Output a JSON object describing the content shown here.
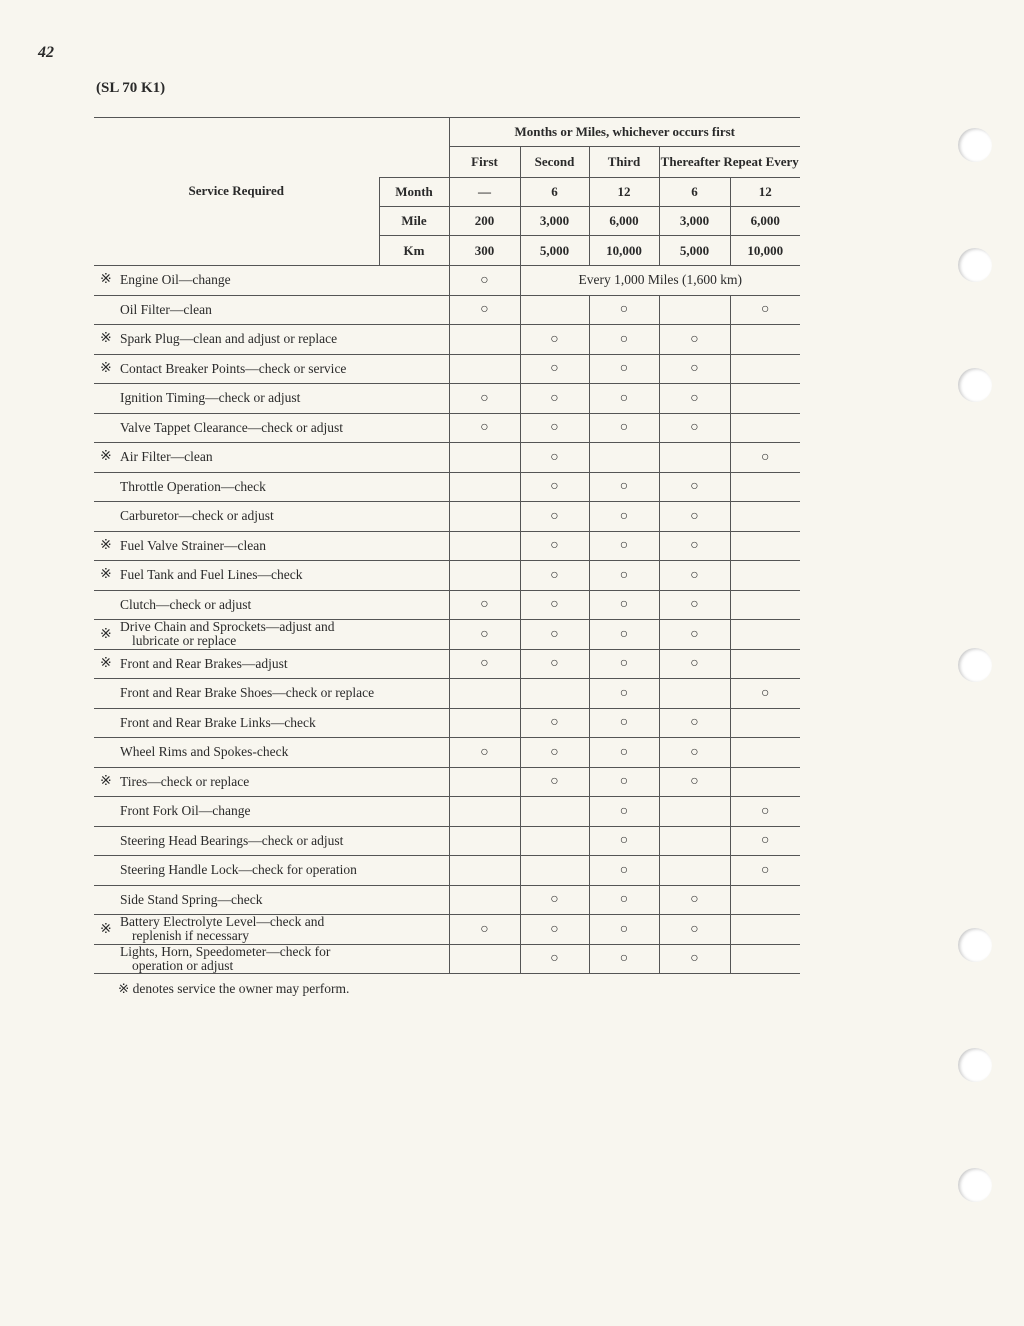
{
  "page_number": "42",
  "model": "(SL 70 K1)",
  "header": {
    "group": "Months or Miles, whichever occurs first",
    "service_required": "Service Required",
    "columns": [
      "First",
      "Second",
      "Third"
    ],
    "thereafter": "Thereafter Repeat Every",
    "row_labels": [
      "Month",
      "Mile",
      "Km"
    ],
    "month": [
      "—",
      "6",
      "12",
      "6",
      "12"
    ],
    "mile": [
      "200",
      "3,000",
      "6,000",
      "3,000",
      "6,000"
    ],
    "km": [
      "300",
      "5,000",
      "10,000",
      "5,000",
      "10,000"
    ]
  },
  "owner_symbol": "※",
  "mark_symbol": "○",
  "engine_oil_note": "Every 1,000 Miles (1,600 km)",
  "rows": [
    {
      "owner": true,
      "service": [
        "Engine Oil—change"
      ],
      "marks": [
        1,
        0,
        0,
        0,
        0
      ]
    },
    {
      "owner": false,
      "service": [
        "Oil Filter—clean"
      ],
      "marks": [
        1,
        0,
        1,
        0,
        1
      ]
    },
    {
      "owner": true,
      "service": [
        "Spark Plug—clean and adjust or replace"
      ],
      "marks": [
        0,
        1,
        1,
        1,
        0
      ]
    },
    {
      "owner": true,
      "service": [
        "Contact Breaker Points—check or service"
      ],
      "marks": [
        0,
        1,
        1,
        1,
        0
      ]
    },
    {
      "owner": false,
      "service": [
        "Ignition Timing—check or adjust"
      ],
      "marks": [
        1,
        1,
        1,
        1,
        0
      ]
    },
    {
      "owner": false,
      "service": [
        "Valve Tappet Clearance—check or adjust"
      ],
      "marks": [
        1,
        1,
        1,
        1,
        0
      ]
    },
    {
      "owner": true,
      "service": [
        "Air Filter—clean"
      ],
      "marks": [
        0,
        1,
        0,
        0,
        1
      ]
    },
    {
      "owner": false,
      "service": [
        "Throttle Operation—check"
      ],
      "marks": [
        0,
        1,
        1,
        1,
        0
      ]
    },
    {
      "owner": false,
      "service": [
        "Carburetor—check or adjust"
      ],
      "marks": [
        0,
        1,
        1,
        1,
        0
      ]
    },
    {
      "owner": true,
      "service": [
        "Fuel Valve Strainer—clean"
      ],
      "marks": [
        0,
        1,
        1,
        1,
        0
      ]
    },
    {
      "owner": true,
      "service": [
        "Fuel Tank and Fuel Lines—check"
      ],
      "marks": [
        0,
        1,
        1,
        1,
        0
      ]
    },
    {
      "owner": false,
      "service": [
        "Clutch—check or adjust"
      ],
      "marks": [
        1,
        1,
        1,
        1,
        0
      ]
    },
    {
      "owner": true,
      "service": [
        "Drive Chain and Sprockets—adjust and",
        "lubricate or replace"
      ],
      "marks": [
        1,
        1,
        1,
        1,
        0
      ]
    },
    {
      "owner": true,
      "service": [
        "Front and Rear Brakes—adjust"
      ],
      "marks": [
        1,
        1,
        1,
        1,
        0
      ]
    },
    {
      "owner": false,
      "service": [
        "Front and Rear Brake Shoes—check or replace"
      ],
      "marks": [
        0,
        0,
        1,
        0,
        1
      ]
    },
    {
      "owner": false,
      "service": [
        "Front and Rear Brake Links—check"
      ],
      "marks": [
        0,
        1,
        1,
        1,
        0
      ]
    },
    {
      "owner": false,
      "service": [
        "Wheel Rims and Spokes-check"
      ],
      "marks": [
        1,
        1,
        1,
        1,
        0
      ]
    },
    {
      "owner": true,
      "service": [
        "Tires—check or replace"
      ],
      "marks": [
        0,
        1,
        1,
        1,
        0
      ]
    },
    {
      "owner": false,
      "service": [
        "Front Fork Oil—change"
      ],
      "marks": [
        0,
        0,
        1,
        0,
        1
      ]
    },
    {
      "owner": false,
      "service": [
        "Steering Head Bearings—check or adjust"
      ],
      "marks": [
        0,
        0,
        1,
        0,
        1
      ]
    },
    {
      "owner": false,
      "service": [
        "Steering Handle Lock—check for operation"
      ],
      "marks": [
        0,
        0,
        1,
        0,
        1
      ]
    },
    {
      "owner": false,
      "service": [
        "Side Stand Spring—check"
      ],
      "marks": [
        0,
        1,
        1,
        1,
        0
      ]
    },
    {
      "owner": true,
      "service": [
        "Battery Electrolyte Level—check and",
        "replenish if necessary"
      ],
      "marks": [
        1,
        1,
        1,
        1,
        0
      ]
    },
    {
      "owner": false,
      "service": [
        "Lights, Horn, Speedometer—check for",
        "operation or adjust"
      ],
      "marks": [
        0,
        1,
        1,
        1,
        0
      ]
    }
  ],
  "footnote": "※ denotes service the owner may perform."
}
